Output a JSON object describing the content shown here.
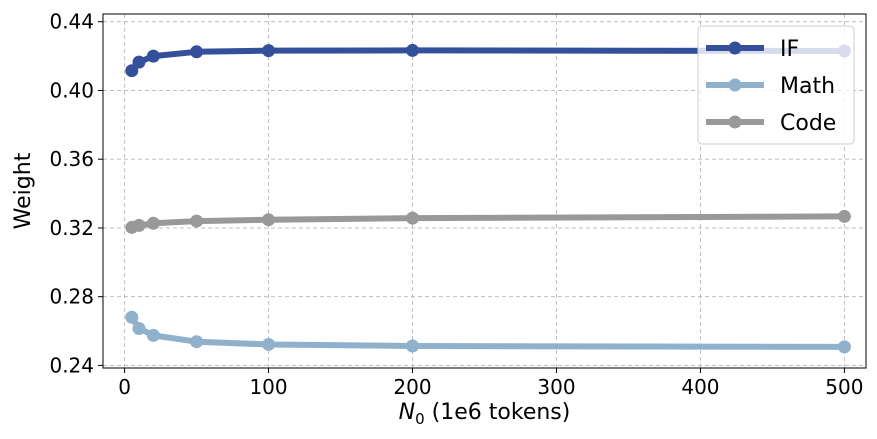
{
  "chart_data": {
    "type": "line",
    "title": "",
    "xlabel_base": "N",
    "xlabel_sub": "0",
    "xlabel_rest": " (1e6 tokens)",
    "ylabel": "Weight",
    "xlim": [
      -15,
      515
    ],
    "ylim": [
      0.2385,
      0.4445
    ],
    "xticks": [
      0,
      100,
      200,
      300,
      400,
      500
    ],
    "yticks": [
      0.24,
      0.28,
      0.32,
      0.36,
      0.4,
      0.44
    ],
    "ytick_labels": [
      "0.24",
      "0.28",
      "0.32",
      "0.36",
      "0.40",
      "0.44"
    ],
    "grid": true,
    "legend_position": "top-right",
    "x": [
      5,
      10,
      20,
      50,
      100,
      200,
      500
    ],
    "series": [
      {
        "name": "IF",
        "color": "#34509a",
        "values": [
          0.4115,
          0.4165,
          0.42,
          0.4225,
          0.4232,
          0.4233,
          0.423
        ]
      },
      {
        "name": "Math",
        "color": "#8fb1cc",
        "values": [
          0.268,
          0.2615,
          0.2575,
          0.2538,
          0.2522,
          0.2513,
          0.2508
        ]
      },
      {
        "name": "Code",
        "color": "#999999",
        "values": [
          0.3203,
          0.3215,
          0.3227,
          0.324,
          0.3248,
          0.3257,
          0.3267
        ]
      }
    ]
  }
}
